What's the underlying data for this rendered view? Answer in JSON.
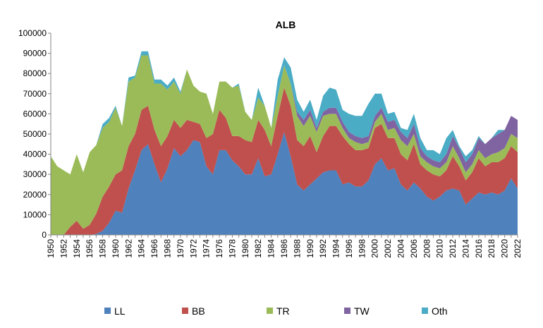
{
  "chart_data": {
    "type": "area",
    "stacked": true,
    "title": "ALB",
    "xlabel": "",
    "ylabel": "",
    "ylim": [
      0,
      100000
    ],
    "yticks": [
      0,
      10000,
      20000,
      30000,
      40000,
      50000,
      60000,
      70000,
      80000,
      90000,
      100000
    ],
    "ytick_labels": [
      "0",
      "10000",
      "20000",
      "30000",
      "40000",
      "50000",
      "60000",
      "70000",
      "80000",
      "90000",
      "100000"
    ],
    "xtick_labels": [
      "1950",
      "1952",
      "1954",
      "1956",
      "1958",
      "1960",
      "1962",
      "1964",
      "1966",
      "1968",
      "1970",
      "1972",
      "1974",
      "1976",
      "1978",
      "1980",
      "1982",
      "1984",
      "1986",
      "1988",
      "1990",
      "1992",
      "1994",
      "1996",
      "1998",
      "2000",
      "2002",
      "2004",
      "2006",
      "2008",
      "2010",
      "2012",
      "2014",
      "2016",
      "2018",
      "2020",
      "2022"
    ],
    "legend_position": "bottom",
    "grid": false,
    "x": [
      1950,
      1951,
      1952,
      1953,
      1954,
      1955,
      1956,
      1957,
      1958,
      1959,
      1960,
      1961,
      1962,
      1963,
      1964,
      1965,
      1966,
      1967,
      1968,
      1969,
      1970,
      1971,
      1972,
      1973,
      1974,
      1975,
      1976,
      1977,
      1978,
      1979,
      1980,
      1981,
      1982,
      1983,
      1984,
      1985,
      1986,
      1987,
      1988,
      1989,
      1990,
      1991,
      1992,
      1993,
      1994,
      1995,
      1996,
      1997,
      1998,
      1999,
      2000,
      2001,
      2002,
      2003,
      2004,
      2005,
      2006,
      2007,
      2008,
      2009,
      2010,
      2011,
      2012,
      2013,
      2014,
      2015,
      2016,
      2017,
      2018,
      2019,
      2020,
      2021,
      2022
    ],
    "series": [
      {
        "name": "LL",
        "color": "#4f81bd",
        "values": [
          0,
          0,
          0,
          0,
          0,
          0,
          0,
          500,
          2000,
          6000,
          12000,
          11000,
          23000,
          32000,
          42000,
          45000,
          35000,
          26000,
          33000,
          43000,
          39000,
          42000,
          47000,
          46000,
          34000,
          30000,
          42000,
          42000,
          37000,
          34000,
          30000,
          30000,
          38000,
          29000,
          30000,
          40000,
          51000,
          39000,
          25000,
          22000,
          25000,
          28000,
          31000,
          32000,
          32000,
          25000,
          26000,
          24000,
          24000,
          27000,
          35000,
          38000,
          32000,
          33000,
          25000,
          22000,
          26000,
          23000,
          19000,
          17000,
          19000,
          22000,
          23000,
          22000,
          15000,
          18000,
          21000,
          20000,
          21000,
          20000,
          22000,
          28000,
          23000
        ]
      },
      {
        "name": "BB",
        "color": "#c0504d",
        "values": [
          0,
          0,
          0,
          4000,
          7000,
          3000,
          5000,
          10000,
          17000,
          18000,
          18000,
          21000,
          21000,
          18000,
          20000,
          19000,
          17000,
          18000,
          16000,
          14000,
          14000,
          15000,
          9000,
          9000,
          14000,
          20000,
          20000,
          16000,
          12000,
          15000,
          17000,
          16000,
          19000,
          23000,
          14000,
          19000,
          22000,
          25000,
          22000,
          22000,
          24000,
          13000,
          18000,
          22000,
          22000,
          24000,
          19000,
          18000,
          18000,
          16000,
          18000,
          17000,
          16000,
          15000,
          15000,
          15000,
          19000,
          12000,
          13000,
          13000,
          10000,
          10000,
          16000,
          12000,
          12000,
          13000,
          17000,
          14000,
          15000,
          16000,
          16000,
          16000,
          18000
        ]
      },
      {
        "name": "TR",
        "color": "#9bbb59",
        "values": [
          39000,
          34000,
          32000,
          26000,
          33000,
          28000,
          36000,
          34000,
          34000,
          32000,
          33000,
          22000,
          32000,
          28000,
          27000,
          25000,
          23000,
          31000,
          23000,
          19000,
          17000,
          25000,
          18000,
          16000,
          22000,
          10000,
          14000,
          18000,
          24000,
          25000,
          14000,
          11000,
          11000,
          12000,
          9000,
          10000,
          11000,
          11000,
          12000,
          10000,
          10000,
          10000,
          10000,
          6000,
          6000,
          4000,
          3000,
          4000,
          3000,
          3000,
          3000,
          5000,
          4000,
          5000,
          7000,
          7000,
          5000,
          4000,
          4000,
          4000,
          4000,
          4000,
          5000,
          4000,
          4000,
          4000,
          4000,
          4000,
          4000,
          5000,
          5000,
          6000,
          7000
        ]
      },
      {
        "name": "TW",
        "color": "#8064a2",
        "values": [
          0,
          0,
          0,
          0,
          0,
          0,
          0,
          0,
          0,
          0,
          0,
          0,
          0,
          0,
          0,
          0,
          0,
          0,
          0,
          0,
          0,
          0,
          0,
          0,
          0,
          0,
          0,
          0,
          0,
          0,
          0,
          0,
          0,
          0,
          0,
          0,
          0,
          0,
          2000,
          3000,
          3000,
          2000,
          2000,
          3000,
          3000,
          3000,
          3000,
          3000,
          3000,
          3000,
          3000,
          3000,
          4000,
          4000,
          4000,
          4000,
          5000,
          4000,
          3000,
          3000,
          3000,
          4000,
          5000,
          5000,
          5000,
          5000,
          6000,
          7000,
          8000,
          9000,
          9000,
          9000,
          9000
        ]
      },
      {
        "name": "Oth",
        "color": "#4bacc6",
        "values": [
          0,
          0,
          0,
          0,
          0,
          0,
          0,
          0,
          2000,
          2000,
          1000,
          0,
          2000,
          1000,
          2000,
          2000,
          2000,
          2000,
          2000,
          2000,
          1000,
          0,
          0,
          0,
          0,
          0,
          0,
          0,
          0,
          1000,
          0,
          0,
          5000,
          0,
          0,
          8000,
          4000,
          8000,
          6000,
          4000,
          5000,
          4000,
          8000,
          10000,
          9000,
          6000,
          9000,
          10000,
          11000,
          16000,
          11000,
          7000,
          4000,
          4000,
          2000,
          4000,
          5000,
          5000,
          3000,
          5000,
          4000,
          8000,
          3000,
          1000,
          3000,
          2000,
          1000,
          0,
          0,
          2000,
          0,
          0,
          0
        ]
      }
    ]
  }
}
